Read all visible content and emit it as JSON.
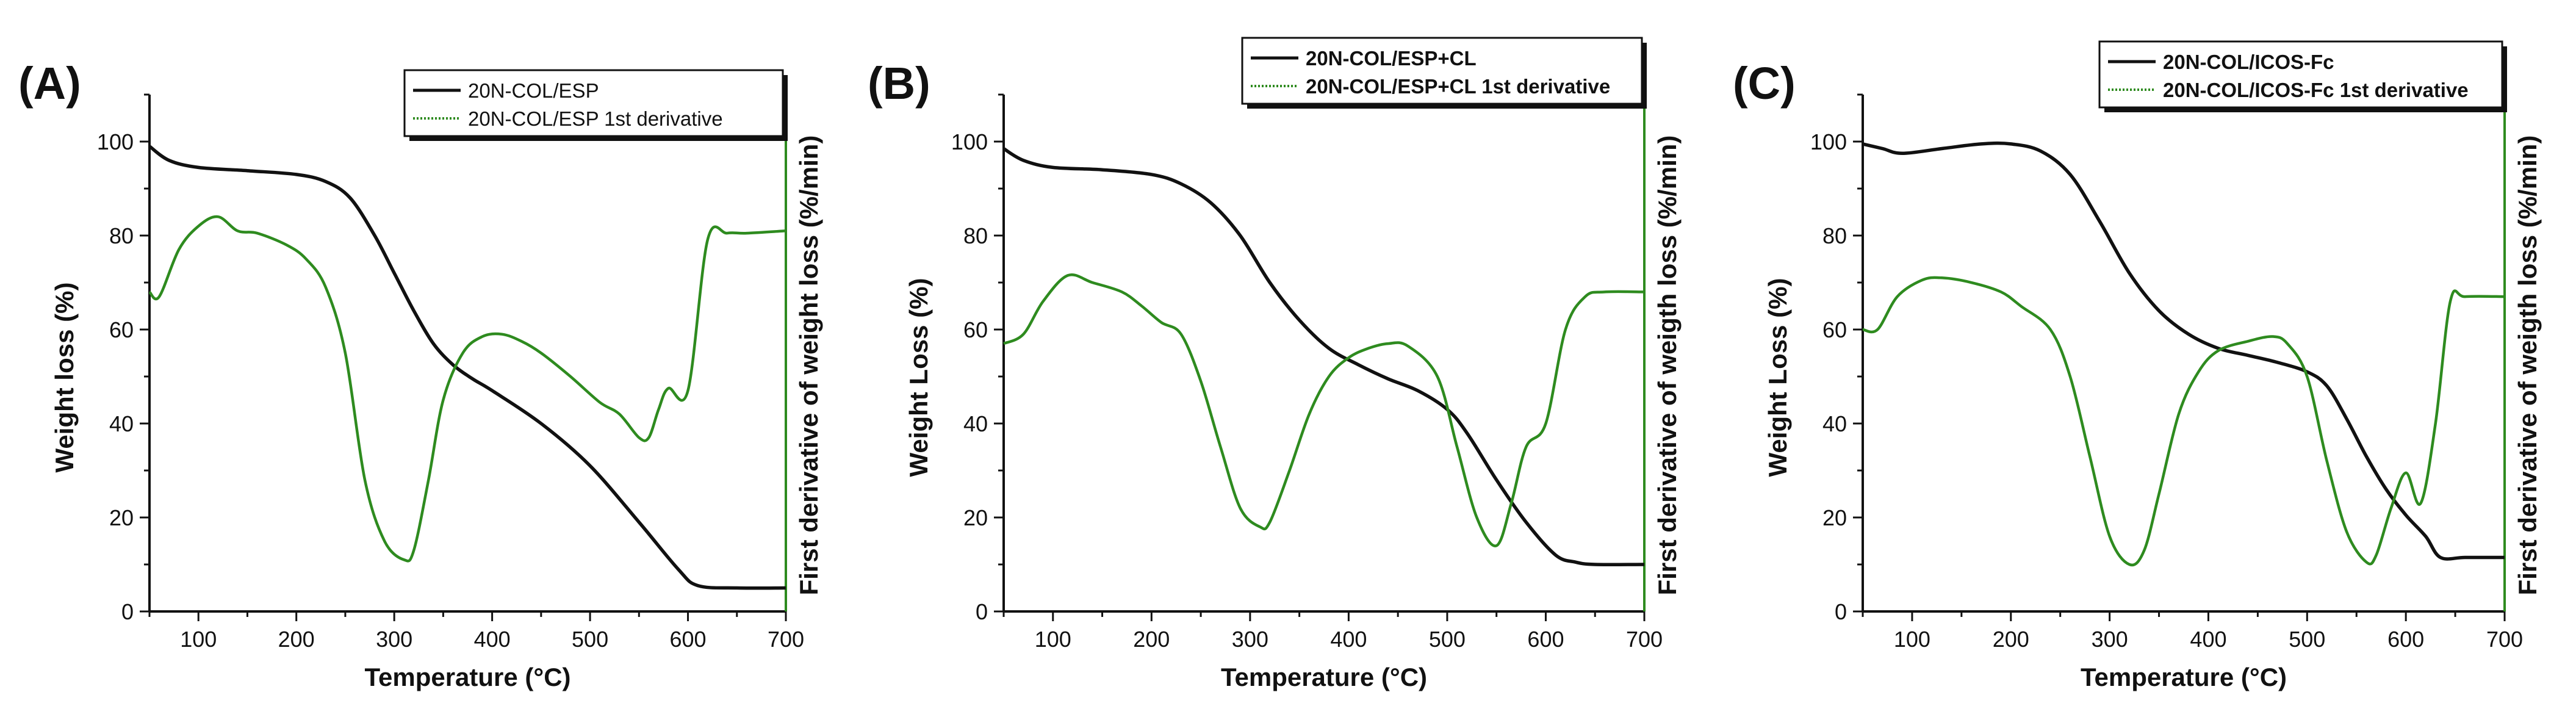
{
  "colors": {
    "weight_loss": "#111111",
    "derivative": "#2e8b1f",
    "axis": "#111111",
    "right_axis": "#2e8b1f"
  },
  "chart_data": [
    {
      "type": "line",
      "panel_label": "(A)",
      "xlabel": "Temperature (°C)",
      "ylabel": "Weight loss (%)",
      "y2label": "First derivative of weight loss (%/min)",
      "xlim": [
        50,
        700
      ],
      "ylim": [
        0,
        110
      ],
      "x_ticks": [
        100,
        200,
        300,
        400,
        500,
        600,
        700
      ],
      "y_ticks": [
        0,
        20,
        40,
        60,
        80,
        100
      ],
      "legend_position": "top-right",
      "series": [
        {
          "name": "20N-COL/ESP",
          "style": "solid",
          "x": [
            50,
            70,
            100,
            150,
            200,
            230,
            255,
            280,
            300,
            320,
            340,
            360,
            380,
            400,
            450,
            500,
            550,
            590,
            610,
            650,
            700
          ],
          "values": [
            99,
            96,
            94.5,
            93.8,
            93,
            91.5,
            88,
            80,
            72,
            64,
            57,
            52.5,
            49.5,
            47,
            40,
            31,
            19,
            9,
            5.5,
            5,
            5
          ]
        },
        {
          "name": "20N-COL/ESP 1st derivative",
          "style": "dotted",
          "x": [
            50,
            60,
            80,
            100,
            120,
            140,
            160,
            190,
            210,
            230,
            250,
            270,
            290,
            310,
            320,
            335,
            350,
            370,
            390,
            410,
            430,
            450,
            480,
            510,
            530,
            550,
            560,
            570,
            580,
            600,
            620,
            640,
            660,
            700
          ],
          "values": [
            68,
            67,
            77,
            82,
            84,
            81,
            80.5,
            78,
            75,
            69,
            55,
            28,
            15,
            11,
            13,
            28,
            45,
            55,
            58.5,
            59,
            57.5,
            55,
            50,
            44.5,
            42,
            37,
            37,
            43,
            47.5,
            47,
            79,
            80.5,
            80.5,
            81
          ]
        }
      ]
    },
    {
      "type": "line",
      "panel_label": "(B)",
      "xlabel": "Temperature (°C)",
      "ylabel": "Weight Loss (%)",
      "y2label": "First derivative of weigth loss (%/min)",
      "xlim": [
        50,
        700
      ],
      "ylim": [
        0,
        110
      ],
      "x_ticks": [
        100,
        200,
        300,
        400,
        500,
        600,
        700
      ],
      "y_ticks": [
        0,
        20,
        40,
        60,
        80,
        100
      ],
      "legend_position": "top-right",
      "series": [
        {
          "name": "20N-COL/ESP+CL",
          "style": "solid",
          "x": [
            50,
            70,
            100,
            150,
            200,
            230,
            260,
            290,
            320,
            350,
            380,
            410,
            440,
            470,
            500,
            520,
            550,
            580,
            610,
            630,
            650,
            700
          ],
          "values": [
            98.5,
            96,
            94.5,
            94,
            93,
            91,
            87,
            80,
            70,
            62,
            56,
            52.5,
            49.5,
            47,
            43,
            38,
            28,
            19,
            12,
            10.5,
            10,
            10
          ]
        },
        {
          "name": "20N-COL/ESP+CL 1st derivative",
          "style": "dotted",
          "x": [
            50,
            70,
            90,
            115,
            140,
            170,
            190,
            210,
            230,
            250,
            270,
            290,
            310,
            320,
            340,
            360,
            380,
            400,
            420,
            440,
            460,
            490,
            510,
            530,
            550,
            565,
            580,
            600,
            620,
            640,
            660,
            700
          ],
          "values": [
            57,
            59,
            66,
            71.5,
            70,
            68,
            65,
            61.5,
            59,
            49,
            35,
            22,
            18,
            19,
            30,
            42,
            50,
            54,
            56,
            57,
            56.5,
            50,
            35,
            20,
            14,
            23,
            35,
            40,
            60,
            67,
            68,
            68
          ]
        }
      ]
    },
    {
      "type": "line",
      "panel_label": "(C)",
      "xlabel": "Temperature (°C)",
      "ylabel": "Weight Loss (%)",
      "y2label": "First derivative of weigth loss (%/min)",
      "xlim": [
        50,
        700
      ],
      "ylim": [
        0,
        110
      ],
      "x_ticks": [
        100,
        200,
        300,
        400,
        500,
        600,
        700
      ],
      "y_ticks": [
        0,
        20,
        40,
        60,
        80,
        100
      ],
      "legend_position": "top-right",
      "series": [
        {
          "name": "20N-COL/ICOS-Fc",
          "style": "solid",
          "x": [
            50,
            70,
            90,
            130,
            170,
            200,
            230,
            260,
            290,
            320,
            350,
            380,
            410,
            440,
            470,
            500,
            520,
            540,
            560,
            580,
            600,
            620,
            635,
            660,
            700
          ],
          "values": [
            99.5,
            98.5,
            97.5,
            98.5,
            99.5,
            99.5,
            98,
            93,
            83,
            72,
            64,
            59,
            56,
            54.5,
            53,
            51,
            48,
            41,
            33,
            26,
            20.5,
            16,
            11.5,
            11.5,
            11.5
          ]
        },
        {
          "name": "20N-COL/ICOS-Fc 1st derivative",
          "style": "dotted",
          "x": [
            50,
            65,
            85,
            110,
            130,
            160,
            190,
            210,
            240,
            260,
            280,
            300,
            320,
            335,
            350,
            370,
            390,
            410,
            440,
            465,
            480,
            500,
            520,
            540,
            560,
            570,
            585,
            600,
            615,
            630,
            645,
            660,
            700
          ],
          "values": [
            60,
            60,
            67,
            70.5,
            71,
            70,
            68,
            65,
            60,
            50,
            33,
            16,
            10,
            13,
            25,
            42,
            51,
            55.5,
            57.5,
            58.5,
            57,
            50,
            32,
            17,
            10.5,
            12,
            22,
            29.5,
            23,
            40,
            66,
            67,
            67
          ]
        }
      ]
    }
  ]
}
